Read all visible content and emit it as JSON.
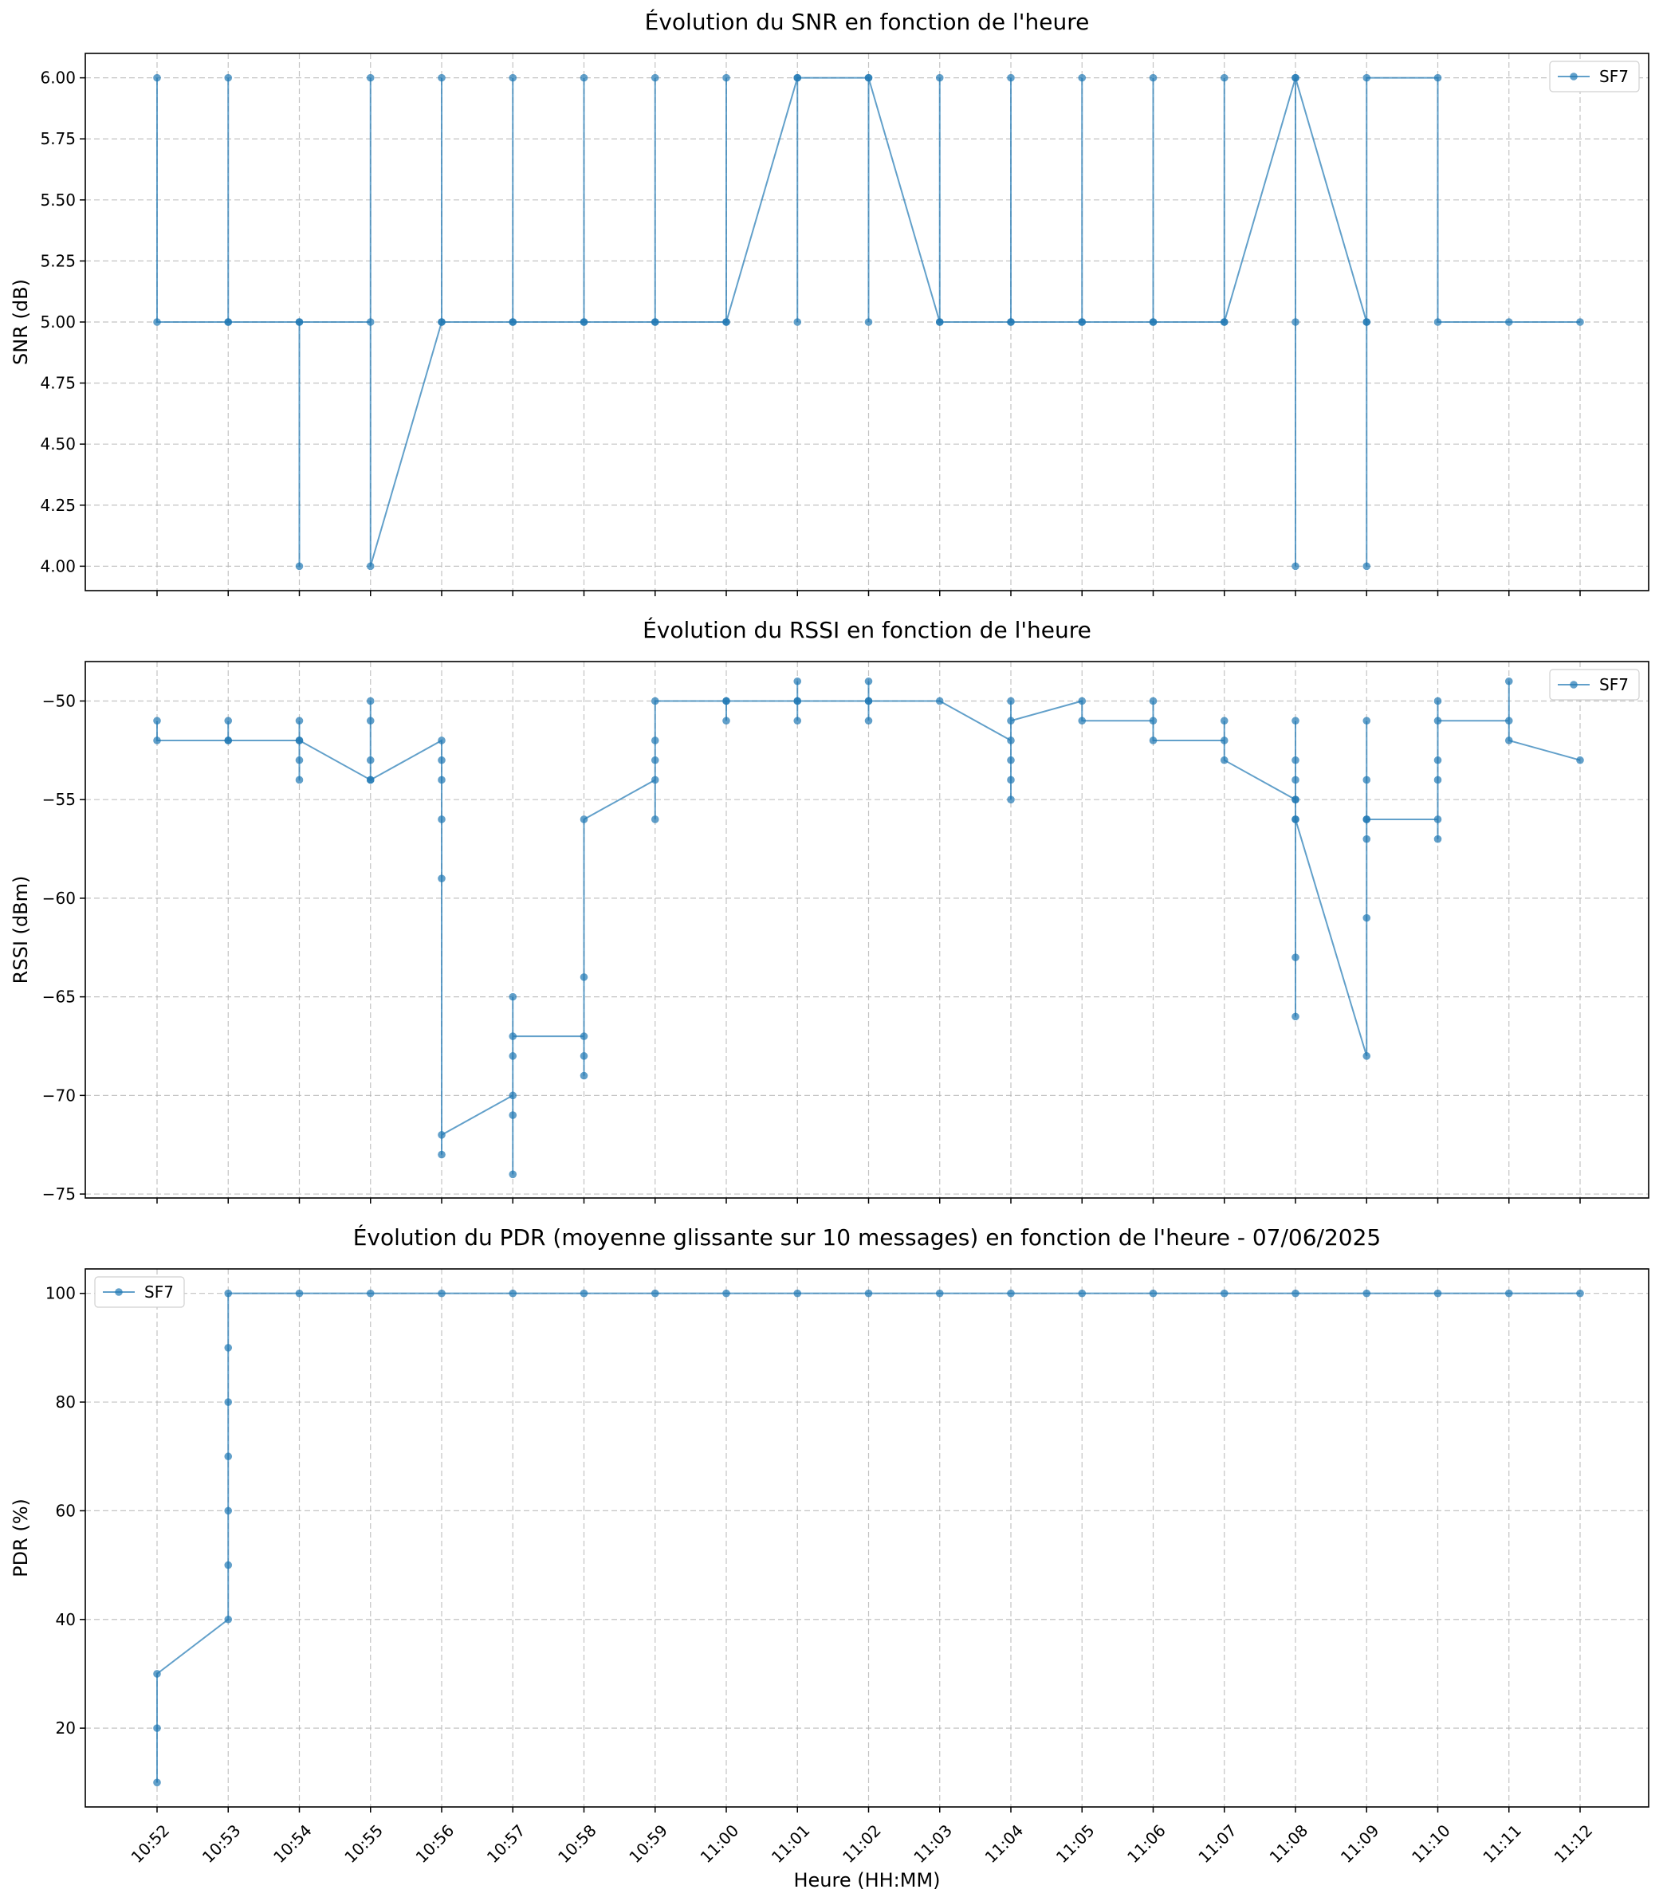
{
  "chart_data": [
    {
      "type": "line",
      "title": "Évolution du SNR en fonction de l'heure",
      "xlabel": "",
      "ylabel": "SNR (dB)",
      "ylim": [
        3.9,
        6.1
      ],
      "yticks": [
        4.0,
        4.25,
        4.5,
        4.75,
        5.0,
        5.25,
        5.5,
        5.75,
        6.0
      ],
      "ytick_labels": [
        "4.00",
        "4.25",
        "4.50",
        "4.75",
        "5.00",
        "5.25",
        "5.50",
        "5.75",
        "6.00"
      ],
      "x_categories": [
        "10:52",
        "10:53",
        "10:54",
        "10:55",
        "10:56",
        "10:57",
        "10:58",
        "10:59",
        "11:00",
        "11:01",
        "11:02",
        "11:03",
        "11:04",
        "11:05",
        "11:06",
        "11:07",
        "11:08",
        "11:09",
        "11:10",
        "11:11",
        "11:12"
      ],
      "legend": "top-right",
      "grid": true,
      "series": [
        {
          "name": "SF7",
          "color": "#1f77b4",
          "points": [
            [
              "10:52",
              6
            ],
            [
              "10:52",
              5
            ],
            [
              "10:53",
              5
            ],
            [
              "10:53",
              6
            ],
            [
              "10:53",
              5
            ],
            [
              "10:54",
              5
            ],
            [
              "10:54",
              4
            ],
            [
              "10:54",
              5
            ],
            [
              "10:55",
              5
            ],
            [
              "10:55",
              6
            ],
            [
              "10:55",
              4
            ],
            [
              "10:56",
              5
            ],
            [
              "10:56",
              6
            ],
            [
              "10:56",
              5
            ],
            [
              "10:57",
              5
            ],
            [
              "10:57",
              6
            ],
            [
              "10:57",
              5
            ],
            [
              "10:58",
              5
            ],
            [
              "10:58",
              6
            ],
            [
              "10:58",
              5
            ],
            [
              "10:59",
              5
            ],
            [
              "10:59",
              6
            ],
            [
              "10:59",
              5
            ],
            [
              "11:00",
              5
            ],
            [
              "11:00",
              6
            ],
            [
              "11:00",
              5
            ],
            [
              "11:01",
              6
            ],
            [
              "11:01",
              5
            ],
            [
              "11:01",
              6
            ],
            [
              "11:02",
              6
            ],
            [
              "11:02",
              5
            ],
            [
              "11:02",
              6
            ],
            [
              "11:03",
              5
            ],
            [
              "11:03",
              6
            ],
            [
              "11:03",
              5
            ],
            [
              "11:04",
              5
            ],
            [
              "11:04",
              6
            ],
            [
              "11:04",
              5
            ],
            [
              "11:05",
              5
            ],
            [
              "11:05",
              6
            ],
            [
              "11:05",
              5
            ],
            [
              "11:06",
              5
            ],
            [
              "11:06",
              6
            ],
            [
              "11:06",
              5
            ],
            [
              "11:07",
              5
            ],
            [
              "11:07",
              6
            ],
            [
              "11:07",
              5
            ],
            [
              "11:08",
              6
            ],
            [
              "11:08",
              4
            ],
            [
              "11:08",
              5
            ],
            [
              "11:08",
              6
            ],
            [
              "11:09",
              5
            ],
            [
              "11:09",
              4
            ],
            [
              "11:09",
              5
            ],
            [
              "11:09",
              6
            ],
            [
              "11:10",
              6
            ],
            [
              "11:10",
              5
            ],
            [
              "11:11",
              5
            ],
            [
              "11:12",
              5
            ]
          ]
        }
      ]
    },
    {
      "type": "line",
      "title": "Évolution du RSSI en fonction de l'heure",
      "xlabel": "",
      "ylabel": "RSSI (dBm)",
      "ylim": [
        -75.2,
        -48
      ],
      "yticks": [
        -75,
        -70,
        -65,
        -60,
        -55,
        -50
      ],
      "ytick_labels": [
        "−75",
        "−70",
        "−65",
        "−60",
        "−55",
        "−50"
      ],
      "x_categories": [
        "10:52",
        "10:53",
        "10:54",
        "10:55",
        "10:56",
        "10:57",
        "10:58",
        "10:59",
        "11:00",
        "11:01",
        "11:02",
        "11:03",
        "11:04",
        "11:05",
        "11:06",
        "11:07",
        "11:08",
        "11:09",
        "11:10",
        "11:11",
        "11:12"
      ],
      "legend": "top-right",
      "grid": true,
      "series": [
        {
          "name": "SF7",
          "color": "#1f77b4",
          "points": [
            [
              "10:52",
              -51
            ],
            [
              "10:52",
              -52
            ],
            [
              "10:53",
              -52
            ],
            [
              "10:53",
              -51
            ],
            [
              "10:53",
              -52
            ],
            [
              "10:54",
              -52
            ],
            [
              "10:54",
              -51
            ],
            [
              "10:54",
              -53
            ],
            [
              "10:54",
              -54
            ],
            [
              "10:54",
              -52
            ],
            [
              "10:55",
              -54
            ],
            [
              "10:55",
              -53
            ],
            [
              "10:55",
              -51
            ],
            [
              "10:55",
              -50
            ],
            [
              "10:55",
              -54
            ],
            [
              "10:56",
              -52
            ],
            [
              "10:56",
              -53
            ],
            [
              "10:56",
              -54
            ],
            [
              "10:56",
              -56
            ],
            [
              "10:56",
              -59
            ],
            [
              "10:56",
              -73
            ],
            [
              "10:56",
              -72
            ],
            [
              "10:57",
              -70
            ],
            [
              "10:57",
              -71
            ],
            [
              "10:57",
              -74
            ],
            [
              "10:57",
              -68
            ],
            [
              "10:57",
              -65
            ],
            [
              "10:57",
              -67
            ],
            [
              "10:58",
              -67
            ],
            [
              "10:58",
              -69
            ],
            [
              "10:58",
              -68
            ],
            [
              "10:58",
              -64
            ],
            [
              "10:58",
              -56
            ],
            [
              "10:59",
              -54
            ],
            [
              "10:59",
              -56
            ],
            [
              "10:59",
              -53
            ],
            [
              "10:59",
              -52
            ],
            [
              "10:59",
              -50
            ],
            [
              "11:00",
              -50
            ],
            [
              "11:00",
              -51
            ],
            [
              "11:00",
              -50
            ],
            [
              "11:01",
              -50
            ],
            [
              "11:01",
              -51
            ],
            [
              "11:01",
              -49
            ],
            [
              "11:01",
              -50
            ],
            [
              "11:02",
              -50
            ],
            [
              "11:02",
              -51
            ],
            [
              "11:02",
              -49
            ],
            [
              "11:02",
              -50
            ],
            [
              "11:03",
              -50
            ],
            [
              "11:04",
              -52
            ],
            [
              "11:04",
              -55
            ],
            [
              "11:04",
              -54
            ],
            [
              "11:04",
              -53
            ],
            [
              "11:04",
              -50
            ],
            [
              "11:04",
              -51
            ],
            [
              "11:05",
              -50
            ],
            [
              "11:05",
              -51
            ],
            [
              "11:06",
              -51
            ],
            [
              "11:06",
              -50
            ],
            [
              "11:06",
              -52
            ],
            [
              "11:07",
              -52
            ],
            [
              "11:07",
              -51
            ],
            [
              "11:07",
              -53
            ],
            [
              "11:08",
              -55
            ],
            [
              "11:08",
              -56
            ],
            [
              "11:08",
              -51
            ],
            [
              "11:08",
              -53
            ],
            [
              "11:08",
              -54
            ],
            [
              "11:08",
              -55
            ],
            [
              "11:08",
              -63
            ],
            [
              "11:08",
              -66
            ],
            [
              "11:08",
              -56
            ],
            [
              "11:09",
              -68
            ],
            [
              "11:09",
              -61
            ],
            [
              "11:09",
              -57
            ],
            [
              "11:09",
              -56
            ],
            [
              "11:09",
              -54
            ],
            [
              "11:09",
              -51
            ],
            [
              "11:09",
              -56
            ],
            [
              "11:10",
              -56
            ],
            [
              "11:10",
              -57
            ],
            [
              "11:10",
              -54
            ],
            [
              "11:10",
              -53
            ],
            [
              "11:10",
              -50
            ],
            [
              "11:10",
              -51
            ],
            [
              "11:11",
              -51
            ],
            [
              "11:11",
              -49
            ],
            [
              "11:11",
              -52
            ],
            [
              "11:12",
              -53
            ]
          ]
        }
      ]
    },
    {
      "type": "line",
      "title": "Évolution du PDR (moyenne glissante sur 10 messages) en fonction de l'heure - 07/06/2025",
      "xlabel": "Heure (HH:MM)",
      "ylabel": "PDR (%)",
      "ylim": [
        5.5,
        104.5
      ],
      "yticks": [
        20,
        40,
        60,
        80,
        100
      ],
      "ytick_labels": [
        "20",
        "40",
        "60",
        "80",
        "100"
      ],
      "x_categories": [
        "10:52",
        "10:53",
        "10:54",
        "10:55",
        "10:56",
        "10:57",
        "10:58",
        "10:59",
        "11:00",
        "11:01",
        "11:02",
        "11:03",
        "11:04",
        "11:05",
        "11:06",
        "11:07",
        "11:08",
        "11:09",
        "11:10",
        "11:11",
        "11:12"
      ],
      "legend": "top-left",
      "grid": true,
      "series": [
        {
          "name": "SF7",
          "color": "#1f77b4",
          "points": [
            [
              "10:52",
              10
            ],
            [
              "10:52",
              20
            ],
            [
              "10:52",
              30
            ],
            [
              "10:53",
              40
            ],
            [
              "10:53",
              50
            ],
            [
              "10:53",
              60
            ],
            [
              "10:53",
              70
            ],
            [
              "10:53",
              80
            ],
            [
              "10:53",
              90
            ],
            [
              "10:53",
              100
            ],
            [
              "10:54",
              100
            ],
            [
              "10:55",
              100
            ],
            [
              "10:56",
              100
            ],
            [
              "10:57",
              100
            ],
            [
              "10:58",
              100
            ],
            [
              "10:59",
              100
            ],
            [
              "11:00",
              100
            ],
            [
              "11:01",
              100
            ],
            [
              "11:02",
              100
            ],
            [
              "11:03",
              100
            ],
            [
              "11:04",
              100
            ],
            [
              "11:05",
              100
            ],
            [
              "11:06",
              100
            ],
            [
              "11:07",
              100
            ],
            [
              "11:08",
              100
            ],
            [
              "11:09",
              100
            ],
            [
              "11:10",
              100
            ],
            [
              "11:11",
              100
            ],
            [
              "11:12",
              100
            ]
          ]
        }
      ]
    }
  ]
}
